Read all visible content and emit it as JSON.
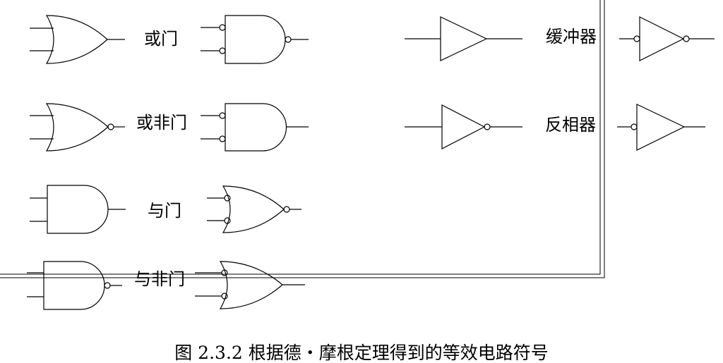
{
  "labels": {
    "or_gate": "或门",
    "nor_gate": "或非门",
    "and_gate": "与门",
    "nand_gate": "与非门",
    "buffer": "缓冲器",
    "inverter": "反相器"
  },
  "caption": "图 2.3.2   根据德・摩根定理得到的等效电路符号",
  "colors": {
    "stroke": "#000000",
    "background": "#ffffff"
  }
}
